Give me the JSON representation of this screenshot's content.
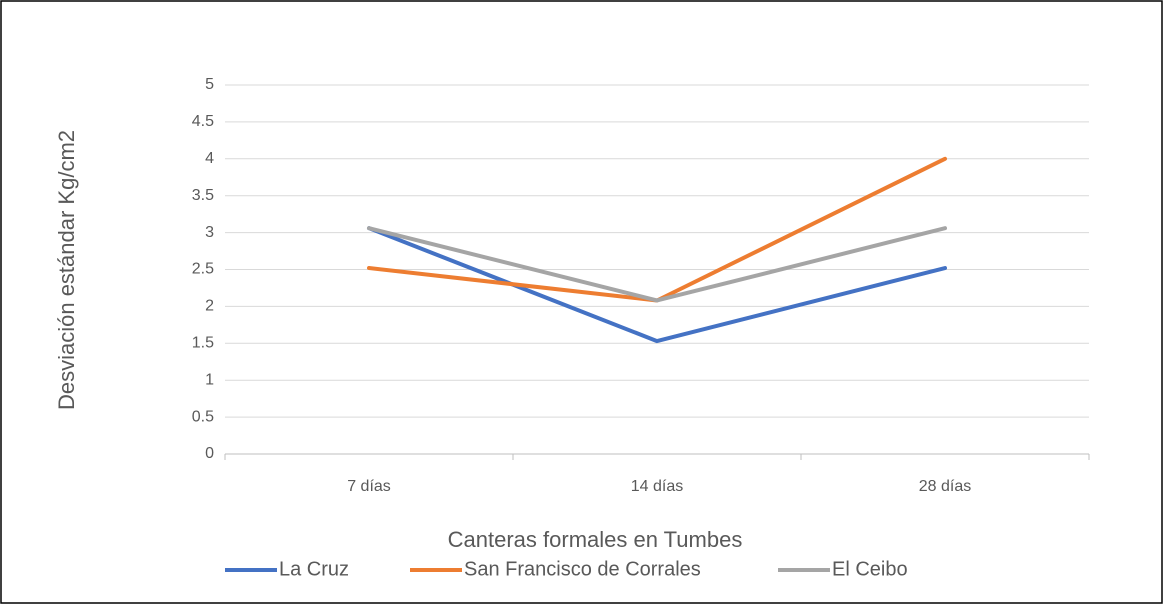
{
  "chart_data": {
    "type": "line",
    "categories": [
      "7 días",
      "14 días",
      "28 días"
    ],
    "series": [
      {
        "name": "La Cruz",
        "color": "#4472c4",
        "values": [
          3.06,
          1.53,
          2.52
        ]
      },
      {
        "name": "San Francisco de Corrales",
        "color": "#ed7d31",
        "values": [
          2.52,
          2.08,
          4.0
        ]
      },
      {
        "name": "El Ceibo",
        "color": "#a5a5a5",
        "values": [
          3.06,
          2.08,
          3.06
        ]
      }
    ],
    "y_label": "Desviación estándar Kg/cm2",
    "x_label": "Canteras formales en Tumbes",
    "ylim": [
      0,
      5
    ],
    "yticks": [
      0,
      0.5,
      1,
      1.5,
      2,
      2.5,
      3,
      3.5,
      4,
      4.5,
      5
    ],
    "grid": true,
    "legend": "bottom"
  }
}
